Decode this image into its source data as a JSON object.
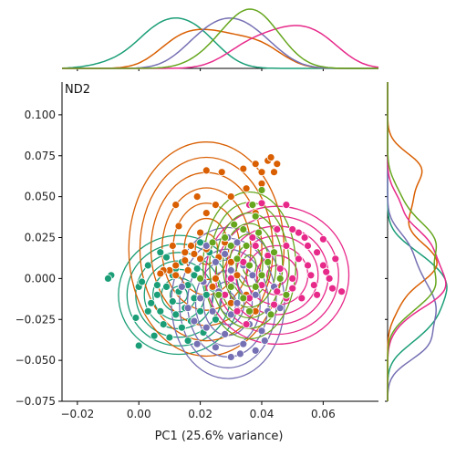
{
  "chart_data": {
    "type": "scatter",
    "title": "",
    "panel_label": "ND2",
    "xlabel": "PC1 (25.6% variance)",
    "ylabel": "",
    "xlim": [
      -0.025,
      0.078
    ],
    "ylim": [
      -0.075,
      0.12
    ],
    "x_ticks": [
      -0.02,
      0.0,
      0.02,
      0.04,
      0.06
    ],
    "x_tick_labels": [
      "−0.02",
      "0.00",
      "0.02",
      "0.04",
      "0.06"
    ],
    "y_ticks": [
      -0.075,
      -0.05,
      -0.025,
      0.0,
      0.025,
      0.05,
      0.075,
      0.1
    ],
    "y_tick_labels": [
      "−0.075",
      "−0.050",
      "−0.025",
      "0.000",
      "0.025",
      "0.050",
      "0.075",
      "0.100"
    ],
    "grid": false,
    "legend": "none",
    "marginals": "kde (top for x, right for y)",
    "series": [
      {
        "color": "#1b9e77",
        "centroid": [
          0.013,
          -0.01
        ],
        "points": [
          [
            -0.009,
            0.002
          ],
          [
            -0.01,
            0.0
          ],
          [
            0.0,
            -0.005
          ],
          [
            0.001,
            -0.002
          ],
          [
            -0.001,
            -0.024
          ],
          [
            0.0,
            -0.041
          ],
          [
            0.003,
            -0.02
          ],
          [
            0.004,
            -0.015
          ],
          [
            0.005,
            -0.035
          ],
          [
            0.006,
            -0.01
          ],
          [
            0.007,
            -0.02
          ],
          [
            0.008,
            -0.028
          ],
          [
            0.009,
            -0.005
          ],
          [
            0.01,
            -0.036
          ],
          [
            0.011,
            -0.014
          ],
          [
            0.012,
            -0.022
          ],
          [
            0.013,
            -0.008
          ],
          [
            0.014,
            -0.03
          ],
          [
            0.015,
            -0.018
          ],
          [
            0.016,
            -0.004
          ],
          [
            0.017,
            -0.026
          ],
          [
            0.018,
            -0.012
          ],
          [
            0.019,
            0.006
          ],
          [
            0.02,
            -0.02
          ],
          [
            0.021,
            -0.033
          ],
          [
            0.022,
            -0.01
          ],
          [
            0.007,
            0.016
          ],
          [
            0.009,
            0.013
          ],
          [
            0.003,
            0.008
          ],
          [
            0.011,
            0.002
          ],
          [
            0.014,
            0.01
          ],
          [
            0.016,
            -0.038
          ],
          [
            0.024,
            -0.006
          ],
          [
            0.026,
            0.012
          ],
          [
            0.025,
            -0.025
          ],
          [
            0.006,
            -0.004
          ],
          [
            0.012,
            0.006
          ],
          [
            0.018,
            0.002
          ],
          [
            0.02,
            0.022
          ],
          [
            0.023,
            0.016
          ]
        ]
      },
      {
        "color": "#d95f02",
        "centroid": [
          0.022,
          0.018
        ],
        "points": [
          [
            0.022,
            0.066
          ],
          [
            0.027,
            0.065
          ],
          [
            0.034,
            0.067
          ],
          [
            0.038,
            0.07
          ],
          [
            0.04,
            0.065
          ],
          [
            0.042,
            0.072
          ],
          [
            0.043,
            0.074
          ],
          [
            0.044,
            0.065
          ],
          [
            0.045,
            0.07
          ],
          [
            0.012,
            0.045
          ],
          [
            0.019,
            0.05
          ],
          [
            0.022,
            0.04
          ],
          [
            0.025,
            0.045
          ],
          [
            0.03,
            0.05
          ],
          [
            0.035,
            0.055
          ],
          [
            0.038,
            0.04
          ],
          [
            0.04,
            0.058
          ],
          [
            0.02,
            0.028
          ],
          [
            0.017,
            0.02
          ],
          [
            0.018,
            0.015
          ],
          [
            0.015,
            0.011
          ],
          [
            0.012,
            0.008
          ],
          [
            0.01,
            0.005
          ],
          [
            0.008,
            0.005
          ],
          [
            0.012,
            0.002
          ],
          [
            0.016,
            0.005
          ],
          [
            0.02,
            0.012
          ],
          [
            0.022,
            0.018
          ],
          [
            0.026,
            0.013
          ],
          [
            0.028,
            0.022
          ],
          [
            0.03,
            0.01
          ],
          [
            0.025,
            0.0
          ],
          [
            0.032,
            0.002
          ],
          [
            0.035,
            -0.01
          ],
          [
            0.038,
            -0.02
          ],
          [
            0.03,
            -0.015
          ],
          [
            0.024,
            -0.005
          ],
          [
            0.015,
            0.016
          ],
          [
            0.011,
            0.02
          ],
          [
            0.013,
            0.032
          ],
          [
            0.007,
            0.003
          ]
        ]
      },
      {
        "color": "#7570b3",
        "centroid": [
          0.029,
          -0.015
        ],
        "points": [
          [
            0.014,
            -0.005
          ],
          [
            0.016,
            -0.018
          ],
          [
            0.018,
            -0.026
          ],
          [
            0.02,
            -0.012
          ],
          [
            0.022,
            -0.03
          ],
          [
            0.024,
            -0.02
          ],
          [
            0.026,
            -0.008
          ],
          [
            0.028,
            -0.034
          ],
          [
            0.03,
            -0.022
          ],
          [
            0.032,
            -0.015
          ],
          [
            0.034,
            -0.04
          ],
          [
            0.036,
            -0.028
          ],
          [
            0.038,
            -0.01
          ],
          [
            0.04,
            -0.032
          ],
          [
            0.042,
            -0.02
          ],
          [
            0.044,
            -0.005
          ],
          [
            0.046,
            -0.018
          ],
          [
            0.025,
            0.01
          ],
          [
            0.028,
            0.015
          ],
          [
            0.03,
            0.005
          ],
          [
            0.022,
            0.02
          ],
          [
            0.034,
            0.008
          ],
          [
            0.019,
            -0.04
          ],
          [
            0.033,
            -0.046
          ],
          [
            0.038,
            -0.044
          ],
          [
            0.03,
            -0.048
          ],
          [
            0.025,
            -0.042
          ],
          [
            0.041,
            -0.038
          ],
          [
            0.029,
            0.025
          ],
          [
            0.032,
            0.022
          ],
          [
            0.037,
            0.002
          ],
          [
            0.021,
            -0.002
          ]
        ]
      },
      {
        "color": "#e7298a",
        "centroid": [
          0.045,
          0.002
        ],
        "points": [
          [
            0.028,
            -0.01
          ],
          [
            0.03,
            0.0
          ],
          [
            0.032,
            -0.02
          ],
          [
            0.034,
            0.01
          ],
          [
            0.036,
            -0.012
          ],
          [
            0.038,
            0.02
          ],
          [
            0.04,
            -0.004
          ],
          [
            0.042,
            0.014
          ],
          [
            0.044,
            -0.016
          ],
          [
            0.046,
            0.006
          ],
          [
            0.048,
            0.02
          ],
          [
            0.05,
            -0.006
          ],
          [
            0.052,
            0.012
          ],
          [
            0.054,
            0.025
          ],
          [
            0.056,
            0.002
          ],
          [
            0.058,
            0.016
          ],
          [
            0.06,
            0.008
          ],
          [
            0.062,
            0.0
          ],
          [
            0.064,
            0.012
          ],
          [
            0.066,
            -0.008
          ],
          [
            0.052,
            0.028
          ],
          [
            0.055,
            0.02
          ],
          [
            0.057,
            -0.004
          ],
          [
            0.06,
            0.024
          ],
          [
            0.045,
            0.03
          ],
          [
            0.05,
            0.03
          ],
          [
            0.04,
            0.046
          ],
          [
            0.037,
            0.025
          ],
          [
            0.035,
            -0.028
          ],
          [
            0.043,
            -0.022
          ],
          [
            0.048,
            -0.012
          ],
          [
            0.053,
            -0.012
          ],
          [
            0.058,
            -0.01
          ],
          [
            0.063,
            -0.006
          ],
          [
            0.036,
            0.045
          ],
          [
            0.048,
            0.045
          ],
          [
            0.05,
            0.0
          ],
          [
            0.055,
            0.008
          ],
          [
            0.061,
            0.004
          ],
          [
            0.045,
            -0.008
          ]
        ]
      },
      {
        "color": "#66a61e",
        "centroid": [
          0.036,
          0.008
        ],
        "points": [
          [
            0.04,
            0.054
          ],
          [
            0.037,
            0.045
          ],
          [
            0.038,
            0.038
          ],
          [
            0.034,
            0.03
          ],
          [
            0.035,
            0.02
          ],
          [
            0.03,
            0.02
          ],
          [
            0.028,
            0.025
          ],
          [
            0.032,
            0.012
          ],
          [
            0.036,
            0.008
          ],
          [
            0.04,
            0.002
          ],
          [
            0.042,
            0.01
          ],
          [
            0.044,
            0.016
          ],
          [
            0.038,
            -0.005
          ],
          [
            0.034,
            -0.012
          ],
          [
            0.03,
            -0.005
          ],
          [
            0.026,
            -0.01
          ],
          [
            0.046,
            0.0
          ],
          [
            0.048,
            -0.01
          ],
          [
            0.043,
            -0.022
          ],
          [
            0.036,
            -0.02
          ],
          [
            0.02,
            0.0
          ],
          [
            0.024,
            0.022
          ],
          [
            0.039,
            0.028
          ],
          [
            0.031,
            0.033
          ]
        ]
      }
    ]
  }
}
